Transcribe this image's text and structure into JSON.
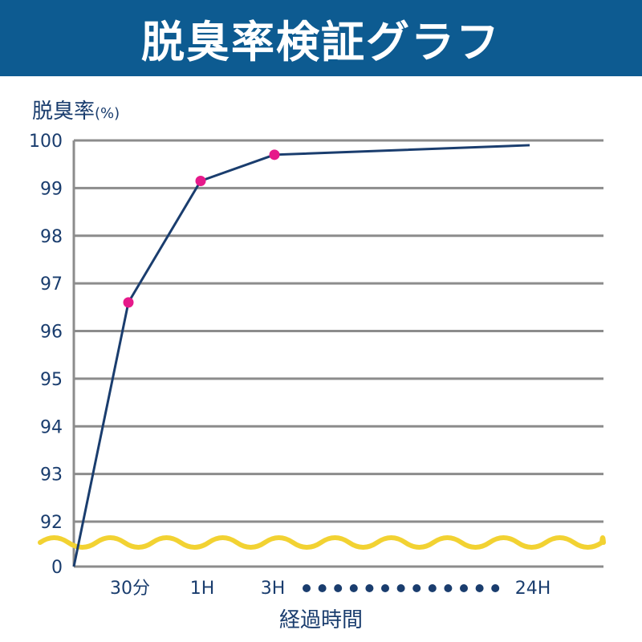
{
  "header": {
    "title": "脱臭率検証グラフ"
  },
  "chart_data": {
    "type": "line",
    "title": "脱臭率検証グラフ",
    "ylabel": "脱臭率",
    "yunit": "(%)",
    "xlabel": "経過時間",
    "yticks": [
      "100",
      "99",
      "98",
      "97",
      "96",
      "95",
      "94",
      "93",
      "92",
      "0"
    ],
    "ytick_values": [
      100,
      99,
      98,
      97,
      96,
      95,
      94,
      93,
      92,
      0
    ],
    "axis_break": "wavy line between 0 and 92",
    "categories": [
      "0",
      "30分",
      "1H",
      "3H",
      "24H"
    ],
    "xtick_labels": [
      "30分",
      "1H",
      "3H",
      "24H"
    ],
    "series": [
      {
        "values": [
          0,
          96.6,
          99.15,
          99.7,
          99.9
        ],
        "markers": [
          false,
          true,
          true,
          true,
          false
        ]
      }
    ],
    "grid": true,
    "colors": {
      "line": "#1a3d6e",
      "marker": "#e6198a",
      "grid": "#8c8c8c",
      "break": "#f2d232",
      "banner": "#0d5b91"
    }
  }
}
